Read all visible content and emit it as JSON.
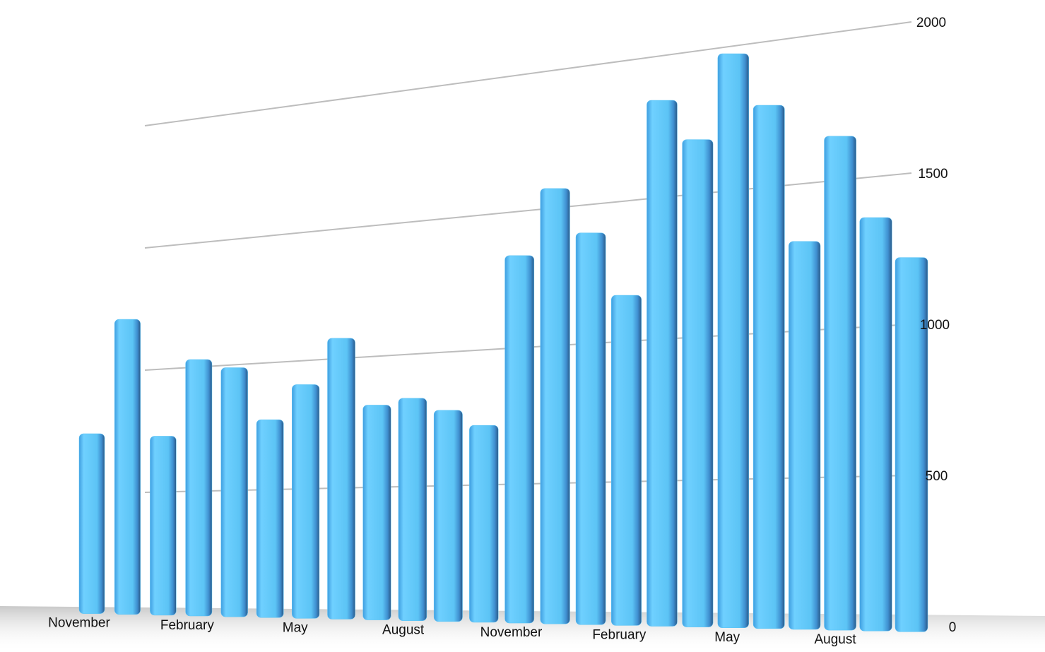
{
  "chart_data": {
    "type": "bar",
    "categories": [
      "November",
      null,
      null,
      "February",
      null,
      null,
      "May",
      null,
      null,
      "August",
      null,
      null,
      "November",
      null,
      null,
      "February",
      null,
      null,
      "May",
      null,
      null,
      "August",
      null,
      null
    ],
    "values": [
      740,
      1200,
      720,
      1020,
      980,
      770,
      900,
      1070,
      810,
      830,
      780,
      720,
      1330,
      1560,
      1390,
      1160,
      1830,
      1680,
      1960,
      1770,
      1300,
      1640,
      1360,
      1220
    ],
    "color": "#5cc4f5",
    "ylim": [
      0,
      2000
    ],
    "yticks": [
      0,
      500,
      1000,
      1500,
      2000
    ],
    "grid": true
  }
}
